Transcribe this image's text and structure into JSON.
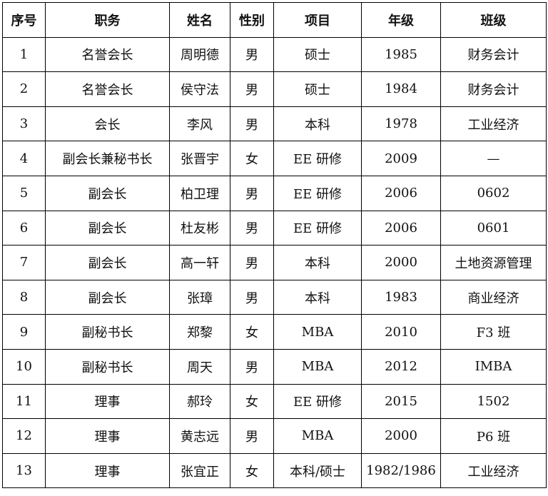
{
  "headers": [
    "序号",
    "职务",
    "姓名",
    "性别",
    "项目",
    "年级",
    "班级"
  ],
  "rows": [
    [
      "1",
      "名誉会长",
      "周明德",
      "男",
      "硕士",
      "1985",
      "财务会计"
    ],
    [
      "2",
      "名誉会长",
      "侯守法",
      "男",
      "硕士",
      "1984",
      "财务会计"
    ],
    [
      "3",
      "会长",
      "李风",
      "男",
      "本科",
      "1978",
      "工业经济"
    ],
    [
      "4",
      "副会长兼秘书长",
      "张晋宇",
      "女",
      "EE 研修",
      "2009",
      "—"
    ],
    [
      "5",
      "副会长",
      "柏卫理",
      "男",
      "EE 研修",
      "2006",
      "0602"
    ],
    [
      "6",
      "副会长",
      "杜友彬",
      "男",
      "EE 研修",
      "2006",
      "0601"
    ],
    [
      "7",
      "副会长",
      "高一轩",
      "男",
      "本科",
      "2000",
      "土地资源管理"
    ],
    [
      "8",
      "副会长",
      "张璋",
      "男",
      "本科",
      "1983",
      "商业经济"
    ],
    [
      "9",
      "副秘书长",
      "郑黎",
      "女",
      "MBA",
      "2010",
      "F3 班"
    ],
    [
      "10",
      "副秘书长",
      "周天",
      "男",
      "MBA",
      "2012",
      "IMBA"
    ],
    [
      "11",
      "理事",
      "郝玲",
      "女",
      "EE 研修",
      "2015",
      "1502"
    ],
    [
      "12",
      "理事",
      "黄志远",
      "男",
      "MBA",
      "2000",
      "P6 班"
    ],
    [
      "13",
      "理事",
      "张宜正",
      "女",
      "本科/硕士",
      "1982/1986",
      "工业经济"
    ]
  ]
}
